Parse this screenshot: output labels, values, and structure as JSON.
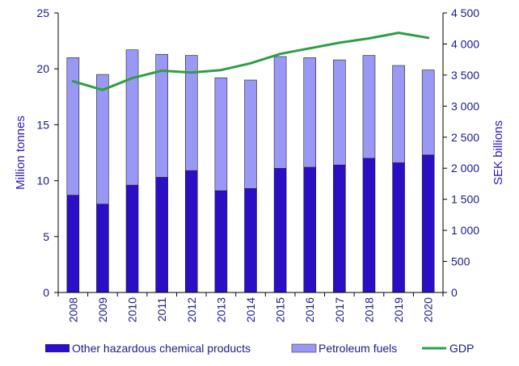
{
  "chart_data": {
    "type": "bar",
    "stacked": true,
    "categories": [
      "2008",
      "2009",
      "2010",
      "2011",
      "2012",
      "2013",
      "2014",
      "2015",
      "2016",
      "2017",
      "2018",
      "2019",
      "2020"
    ],
    "series": [
      {
        "name": "Other hazardous chemical products",
        "axis": "left",
        "color": "#2a0fc4",
        "values": [
          8.7,
          7.9,
          9.6,
          10.3,
          10.9,
          9.1,
          9.3,
          11.1,
          11.2,
          11.4,
          12.0,
          11.6,
          12.3
        ]
      },
      {
        "name": "Petroleum fuels",
        "axis": "left",
        "color": "#9999f5",
        "values": [
          12.3,
          11.6,
          12.1,
          11.0,
          10.3,
          10.1,
          9.7,
          10.0,
          9.8,
          9.4,
          9.2,
          8.7,
          7.6
        ]
      },
      {
        "name": "GDP",
        "type": "line",
        "axis": "right",
        "color": "#2f9e44",
        "values": [
          3400,
          3260,
          3450,
          3570,
          3540,
          3580,
          3690,
          3840,
          3930,
          4020,
          4090,
          4180,
          4100
        ]
      }
    ],
    "ylabel": "Million tonnes",
    "y2label": "SEK billions",
    "ylim": [
      0,
      25
    ],
    "y2lim": [
      0,
      4500
    ],
    "yticks": [
      "0",
      "5",
      "10",
      "15",
      "20",
      "25"
    ],
    "y2ticks": [
      "0",
      "500",
      "1 000",
      "1 500",
      "2 000",
      "2 500",
      "3 000",
      "3 500",
      "4 000",
      "4 500"
    ],
    "grid": false,
    "legend": "bottom"
  }
}
